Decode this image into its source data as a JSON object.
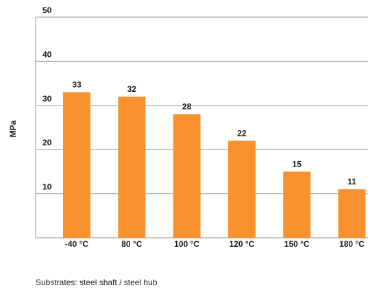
{
  "chart_data": {
    "type": "bar",
    "title": "",
    "xlabel": "",
    "ylabel": "MPa",
    "ylim": [
      0,
      50
    ],
    "yticks": [
      10,
      20,
      30,
      40,
      50
    ],
    "grid": true,
    "categories": [
      "-40 °C",
      "80 °C",
      "100 °C",
      "120 °C",
      "150 °C",
      "180 °C"
    ],
    "values": [
      33,
      32,
      28,
      22,
      15,
      11
    ],
    "data_labels": [
      "33",
      "32",
      "28",
      "22",
      "15",
      "11"
    ],
    "bar_color": "#f7922e",
    "grid_color": "#9a9a9a"
  },
  "footnote": "Substrates: steel shaft / steel hub"
}
